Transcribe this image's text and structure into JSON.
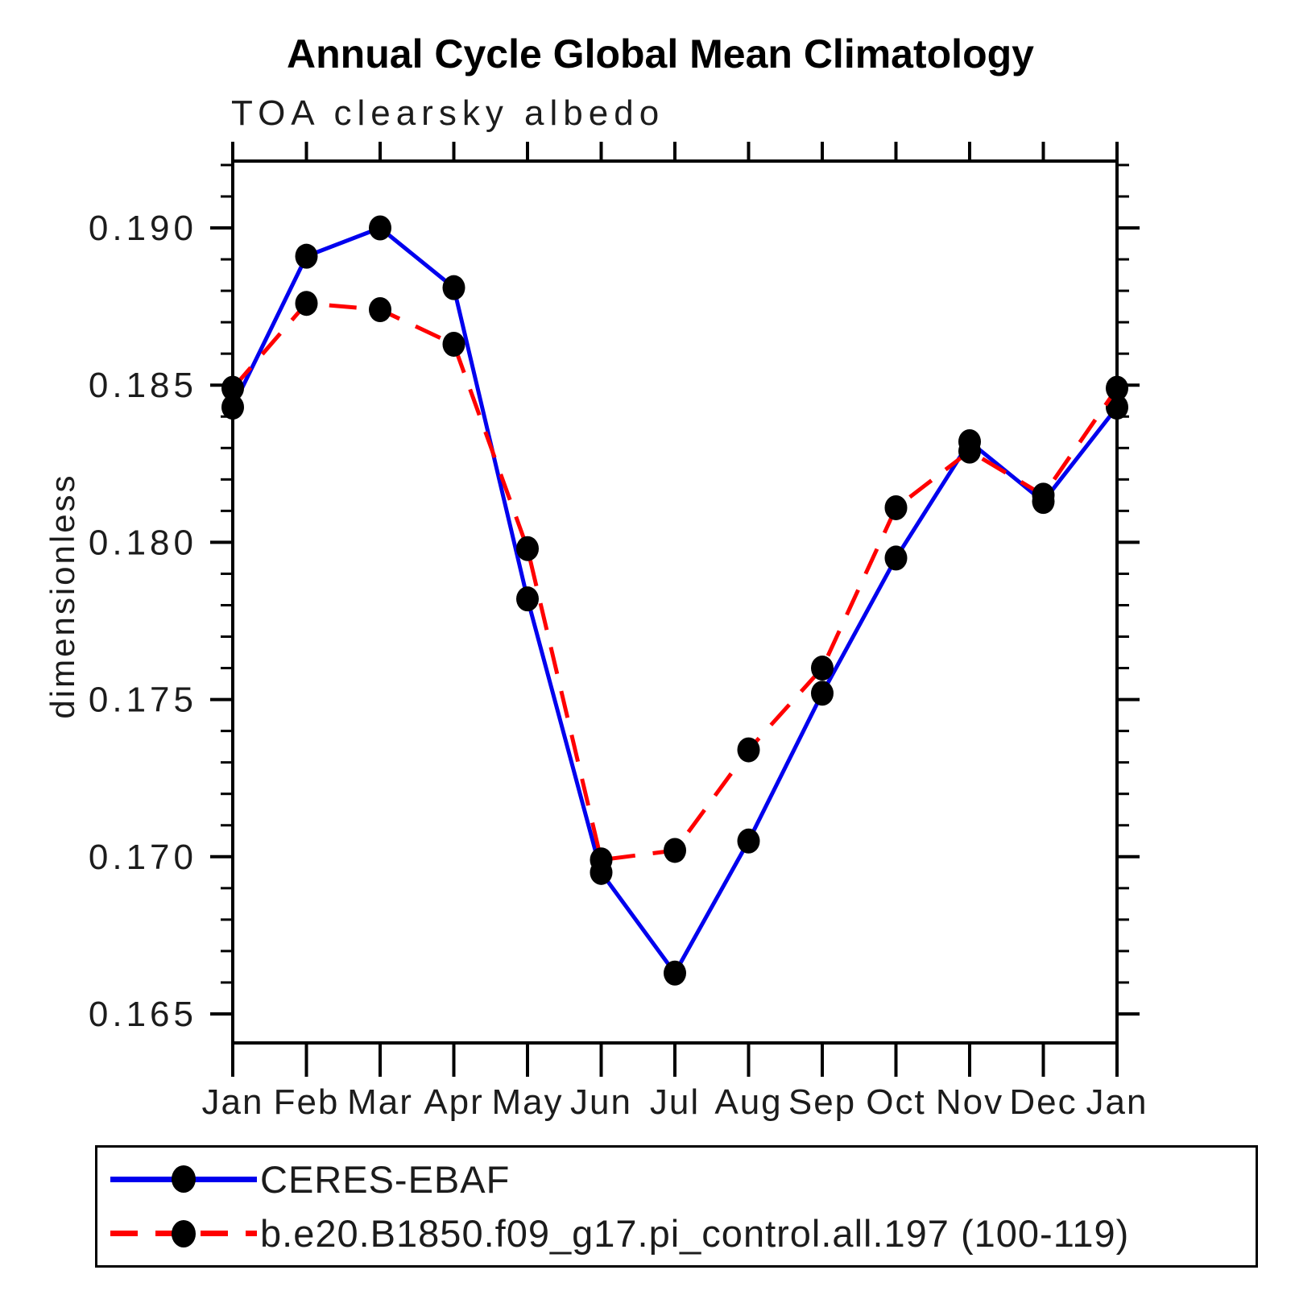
{
  "title": "Annual Cycle Global Mean Climatology",
  "subtitle": "TOA clearsky albedo",
  "y_axis": {
    "label": "dimensionless",
    "major_ticks": [
      "0.165",
      "0.170",
      "0.175",
      "0.180",
      "0.185",
      "0.190"
    ],
    "minor_tick_step": 0.001
  },
  "x_axis": {
    "labels": [
      "Jan",
      "Feb",
      "Mar",
      "Apr",
      "May",
      "Jun",
      "Jul",
      "Aug",
      "Sep",
      "Oct",
      "Nov",
      "Dec",
      "Jan"
    ]
  },
  "legend": [
    {
      "label": "CERES-EBAF",
      "color": "#0000ee",
      "style": "solid",
      "marker": "dot"
    },
    {
      "label": "b.e20.B1850.f09_g17.pi_control.all.197 (100-119)",
      "color": "#ff0000",
      "style": "dashed",
      "marker": "dot"
    }
  ],
  "colors": {
    "obs_line": "#0000ee",
    "model_line": "#ff0000",
    "marker": "#000000",
    "axis": "#000000"
  },
  "chart_data": {
    "type": "line",
    "title": "Annual Cycle Global Mean Climatology",
    "subtitle": "TOA clearsky albedo",
    "xlabel": "",
    "ylabel": "dimensionless",
    "x": [
      "Jan",
      "Feb",
      "Mar",
      "Apr",
      "May",
      "Jun",
      "Jul",
      "Aug",
      "Sep",
      "Oct",
      "Nov",
      "Dec",
      "Jan"
    ],
    "ylim": [
      0.164,
      0.1921
    ],
    "ytick_major": [
      0.165,
      0.17,
      0.175,
      0.18,
      0.185,
      0.19
    ],
    "grid": false,
    "legend_position": "bottom",
    "series": [
      {
        "name": "CERES-EBAF",
        "color": "#0000ee",
        "line_style": "solid",
        "marker": "circle",
        "marker_color": "#000000",
        "values": [
          0.1843,
          0.1891,
          0.19,
          0.1881,
          0.1782,
          0.1695,
          0.1663,
          0.1705,
          0.1752,
          0.1795,
          0.1832,
          0.1813,
          0.1843
        ]
      },
      {
        "name": "b.e20.B1850.f09_g17.pi_control.all.197 (100-119)",
        "color": "#ff0000",
        "line_style": "dashed",
        "marker": "circle",
        "marker_color": "#000000",
        "values": [
          0.1849,
          0.1876,
          0.1874,
          0.1863,
          0.1798,
          0.1699,
          0.1702,
          0.1734,
          0.176,
          0.1811,
          0.1829,
          0.1815,
          0.1849
        ]
      }
    ]
  }
}
